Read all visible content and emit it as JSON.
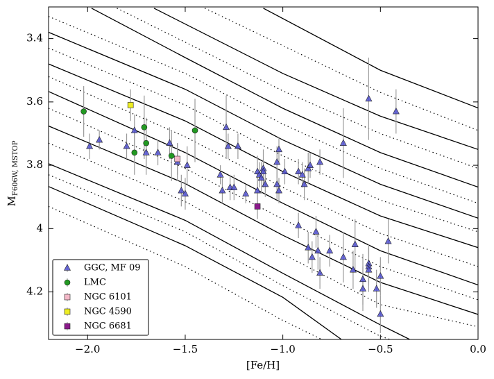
{
  "chart_data": {
    "type": "scatter",
    "xlabel": "[Fe/H]",
    "ylabel": {
      "main": "M",
      "sub": "F606W, MSTOP"
    },
    "xlim": [
      -2.2,
      0.0
    ],
    "ylim": [
      4.35,
      3.3
    ],
    "xticks": [
      {
        "value": -2.0,
        "label": "−2.0"
      },
      {
        "value": -1.5,
        "label": "−1.5"
      },
      {
        "value": -1.0,
        "label": "−1.0"
      },
      {
        "value": -0.5,
        "label": "−0.5"
      },
      {
        "value": 0.0,
        "label": "0.0"
      }
    ],
    "yticks": [
      3.4,
      3.6,
      3.8,
      4.0,
      4.2
    ],
    "legend": "lower left",
    "grid": false,
    "series": [
      {
        "name": "GGC, MF 09",
        "marker": "triangle",
        "color": "#5050d0",
        "x": [
          -1.99,
          -1.94,
          -1.8,
          -1.76,
          -1.7,
          -1.64,
          -1.58,
          -1.54,
          -1.52,
          -1.5,
          -1.49,
          -1.32,
          -1.31,
          -1.29,
          -1.28,
          -1.27,
          -1.25,
          -1.23,
          -1.19,
          -1.13,
          -1.13,
          -1.12,
          -1.11,
          -1.1,
          -1.1,
          -1.09,
          -1.03,
          -1.03,
          -1.02,
          -1.02,
          -0.99,
          -0.92,
          -0.92,
          -0.9,
          -0.89,
          -0.87,
          -0.87,
          -0.86,
          -0.85,
          -0.83,
          -0.82,
          -0.81,
          -0.81,
          -0.76,
          -0.69,
          -0.69,
          -0.64,
          -0.63,
          -0.59,
          -0.59,
          -0.56,
          -0.56,
          -0.56,
          -0.56,
          -0.52,
          -0.5,
          -0.5,
          -0.46,
          -0.42
        ],
        "values": [
          3.74,
          3.72,
          3.74,
          3.69,
          3.76,
          3.76,
          3.73,
          3.79,
          3.88,
          3.89,
          3.8,
          3.83,
          3.88,
          3.68,
          3.74,
          3.87,
          3.87,
          3.74,
          3.89,
          3.82,
          3.88,
          3.83,
          3.84,
          3.81,
          3.82,
          3.86,
          3.86,
          3.79,
          3.75,
          3.88,
          3.82,
          3.82,
          3.99,
          3.83,
          3.86,
          3.81,
          4.06,
          3.8,
          4.09,
          4.01,
          4.07,
          4.14,
          3.79,
          4.07,
          3.73,
          4.09,
          4.13,
          4.05,
          4.16,
          4.19,
          3.59,
          4.11,
          4.12,
          4.13,
          4.19,
          4.15,
          4.27,
          4.04,
          3.63
        ],
        "errors": [
          0.04,
          0.03,
          0.04,
          0.05,
          0.07,
          0.04,
          0.05,
          0.06,
          0.05,
          0.05,
          0.06,
          0.03,
          0.04,
          0.1,
          0.04,
          0.04,
          0.04,
          0.04,
          0.03,
          0.05,
          0.05,
          0.04,
          0.05,
          0.06,
          0.04,
          0.04,
          0.05,
          0.05,
          0.04,
          0.04,
          0.04,
          0.04,
          0.04,
          0.04,
          0.05,
          0.05,
          0.05,
          0.04,
          0.05,
          0.05,
          0.06,
          0.05,
          0.04,
          0.05,
          0.11,
          0.08,
          0.06,
          0.08,
          0.08,
          0.07,
          0.13,
          0.06,
          0.06,
          0.07,
          0.06,
          0.06,
          0.06,
          0.07,
          0.07
        ]
      },
      {
        "name": "LMC",
        "marker": "circle",
        "color": "#229922",
        "x": [
          -2.02,
          -1.76,
          -1.71,
          -1.7,
          -1.57,
          -1.45
        ],
        "values": [
          3.63,
          3.76,
          3.68,
          3.73,
          3.77,
          3.69
        ],
        "errors": [
          0.08,
          0.07,
          0.1,
          0.08,
          0.08,
          0.1
        ]
      },
      {
        "name": "NGC 6101",
        "marker": "square",
        "color": "#f4b8c8",
        "x": [
          -1.54
        ],
        "values": [
          3.78
        ],
        "errors": [
          0.05
        ]
      },
      {
        "name": "NGC 4590",
        "marker": "square",
        "color": "#eeee22",
        "x": [
          -1.78
        ],
        "values": [
          3.61
        ],
        "errors": [
          0.05
        ]
      },
      {
        "name": "NGC 6681",
        "marker": "square",
        "color": "#8b1a8b",
        "x": [
          -1.13
        ],
        "values": [
          3.93
        ],
        "errors": [
          0.04
        ]
      }
    ],
    "lines": [
      {
        "style": "solid",
        "x": [
          -2.2,
          -1.5,
          -1.0,
          -0.7
        ],
        "values": [
          3.867,
          4.054,
          4.217,
          4.35
        ]
      },
      {
        "style": "solid",
        "x": [
          -2.2,
          -1.5,
          -1.0,
          -0.5,
          -0.35
        ],
        "values": [
          3.795,
          3.974,
          4.141,
          4.304,
          4.35
        ]
      },
      {
        "style": "solid",
        "x": [
          -2.2,
          -1.5,
          -1.0,
          -0.5,
          0.0
        ],
        "values": [
          3.676,
          3.858,
          4.021,
          4.17,
          4.271
        ]
      },
      {
        "style": "solid",
        "x": [
          -2.2,
          -1.5,
          -1.0,
          -0.5,
          0.0
        ],
        "values": [
          3.567,
          3.76,
          3.92,
          4.07,
          4.178
        ]
      },
      {
        "style": "solid",
        "x": [
          -2.2,
          -1.5,
          -1.0,
          -0.5,
          0.0
        ],
        "values": [
          3.48,
          3.66,
          3.82,
          3.96,
          4.06
        ]
      },
      {
        "style": "solid",
        "x": [
          -2.2,
          -1.5,
          -1.0,
          -0.5,
          0.0
        ],
        "values": [
          3.38,
          3.56,
          3.72,
          3.86,
          3.967
        ]
      },
      {
        "style": "solid",
        "x": [
          -1.98,
          -1.5,
          -1.0,
          -0.5,
          0.0
        ],
        "values": [
          3.304,
          3.46,
          3.62,
          3.76,
          3.869
        ]
      },
      {
        "style": "solid",
        "x": [
          -1.66,
          -1.0,
          -0.5,
          0.0
        ],
        "values": [
          3.304,
          3.51,
          3.645,
          3.75
        ]
      },
      {
        "style": "solid",
        "x": [
          -1.1,
          -0.5,
          0.0
        ],
        "values": [
          3.304,
          3.5,
          3.619
        ]
      },
      {
        "style": "dotted",
        "x": [
          -2.2,
          -1.5,
          -1.0,
          -0.8
        ],
        "values": [
          3.93,
          4.12,
          4.29,
          4.35
        ]
      },
      {
        "style": "dotted",
        "x": [
          -2.2,
          -1.5,
          -1.0,
          -0.5,
          -0.45
        ],
        "values": [
          3.83,
          4.01,
          4.18,
          4.34,
          4.35
        ]
      },
      {
        "style": "dotted",
        "x": [
          -2.2,
          -1.5,
          -1.0,
          -0.5,
          0.0
        ],
        "values": [
          3.73,
          3.915,
          4.08,
          4.24,
          4.31
        ]
      },
      {
        "style": "dotted",
        "x": [
          -2.2,
          -1.5,
          -1.0,
          -0.5,
          0.0
        ],
        "values": [
          3.62,
          3.81,
          3.97,
          4.12,
          4.225
        ]
      },
      {
        "style": "dotted",
        "x": [
          -2.2,
          -1.5,
          -1.0,
          -0.5,
          0.0
        ],
        "values": [
          3.52,
          3.71,
          3.87,
          4.015,
          4.12
        ]
      },
      {
        "style": "dotted",
        "x": [
          -2.2,
          -1.5,
          -1.0,
          -0.5,
          0.0
        ],
        "values": [
          3.43,
          3.61,
          3.77,
          3.91,
          4.01
        ]
      },
      {
        "style": "dotted",
        "x": [
          -2.2,
          -1.5,
          -1.0,
          -0.5,
          0.0
        ],
        "values": [
          3.33,
          3.51,
          3.67,
          3.81,
          3.92
        ]
      },
      {
        "style": "dotted",
        "x": [
          -1.85,
          -1.0,
          -0.5,
          0.0
        ],
        "values": [
          3.304,
          3.565,
          3.7,
          3.81
        ]
      },
      {
        "style": "dotted",
        "x": [
          -1.4,
          -0.5,
          0.0
        ],
        "values": [
          3.304,
          3.57,
          3.69
        ]
      }
    ]
  }
}
